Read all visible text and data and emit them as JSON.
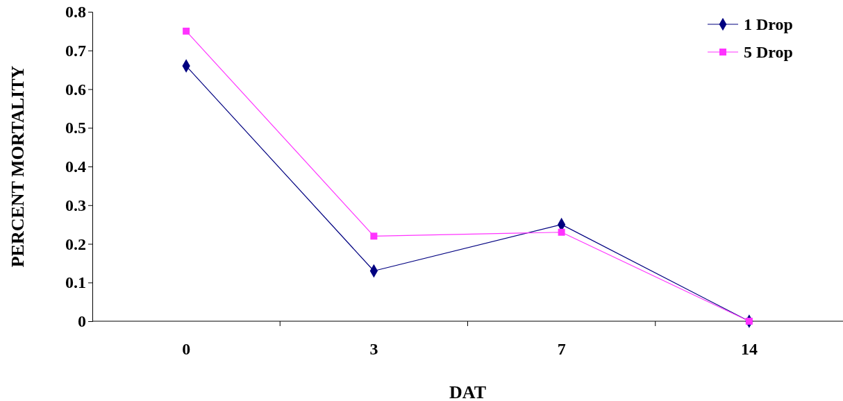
{
  "chart_data": {
    "type": "line",
    "xlabel": "DAT",
    "ylabel": "PERCENT MORTALITY",
    "categories": [
      "0",
      "3",
      "7",
      "14"
    ],
    "series": [
      {
        "name": "1 Drop",
        "color": "#000080",
        "marker": "diamond",
        "values": [
          0.66,
          0.13,
          0.25,
          0
        ]
      },
      {
        "name": "5 Drop",
        "color": "#ff33ff",
        "marker": "square",
        "values": [
          0.75,
          0.22,
          0.23,
          0
        ]
      }
    ],
    "ylim": [
      0,
      0.8
    ],
    "yticks": [
      0,
      0.1,
      0.2,
      0.3,
      0.4,
      0.5,
      0.6,
      0.7,
      0.8
    ],
    "grid": false,
    "legend": "top right"
  }
}
